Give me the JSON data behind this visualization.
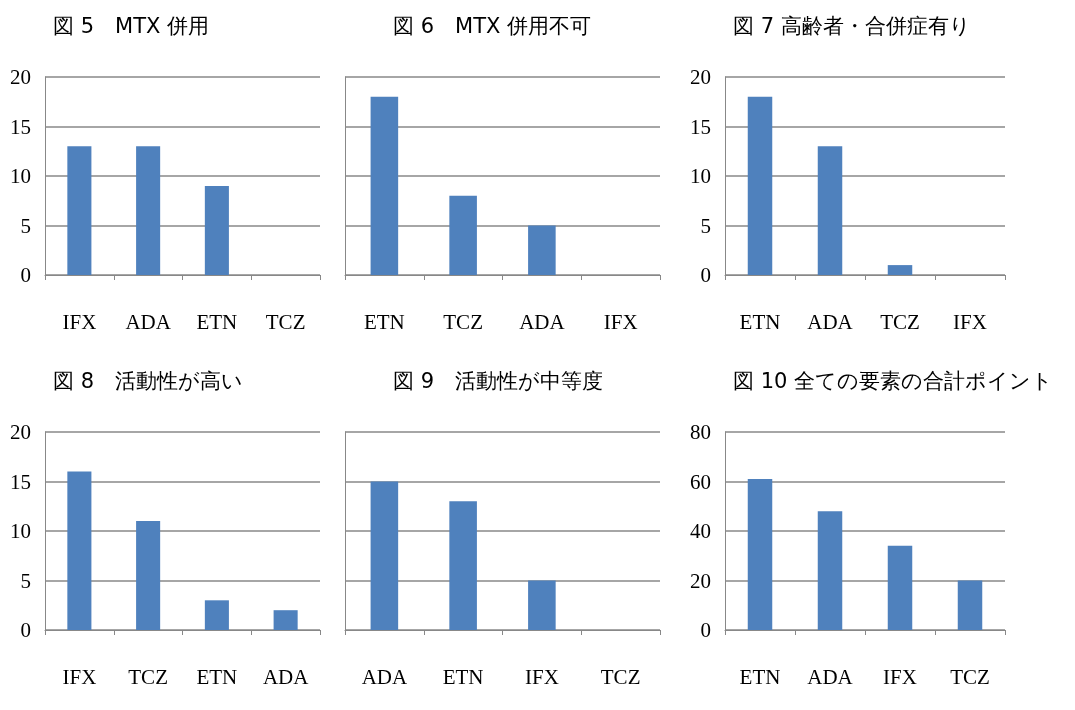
{
  "chart_data": [
    {
      "type": "bar",
      "title": "図 5　MTX 併用",
      "categories": [
        "IFX",
        "ADA",
        "ETN",
        "TCZ"
      ],
      "values": [
        13,
        13,
        9,
        0
      ],
      "color": "#4f81bd",
      "ylim": [
        0,
        20
      ],
      "yticks": [
        0,
        5,
        10,
        15,
        20
      ],
      "grid": "y"
    },
    {
      "type": "bar",
      "title": "図 6　MTX 併用不可",
      "categories": [
        "ETN",
        "TCZ",
        "ADA",
        "IFX"
      ],
      "values": [
        18,
        8,
        5,
        0
      ],
      "color": "#4f81bd",
      "ylim": [
        0,
        20
      ],
      "yticks": [
        0,
        5,
        10,
        15,
        20
      ],
      "grid": "y",
      "tick_labels": "x"
    },
    {
      "type": "bar",
      "title": "図 7 高齢者・合併症有り",
      "categories": [
        "ETN",
        "ADA",
        "TCZ",
        "IFX"
      ],
      "values": [
        18,
        13,
        1,
        0
      ],
      "color": "#4f81bd",
      "ylim": [
        0,
        20
      ],
      "yticks": [
        0,
        5,
        10,
        15,
        20
      ],
      "grid": "y"
    },
    {
      "type": "bar",
      "title": "図 8　活動性が高い",
      "categories": [
        "IFX",
        "TCZ",
        "ETN",
        "ADA"
      ],
      "values": [
        16,
        11,
        3,
        2
      ],
      "color": "#4f81bd",
      "ylim": [
        0,
        20
      ],
      "yticks": [
        0,
        5,
        10,
        15,
        20
      ],
      "grid": "y"
    },
    {
      "type": "bar",
      "title": "図 9　活動性が中等度",
      "categories": [
        "ADA",
        "ETN",
        "IFX",
        "TCZ"
      ],
      "values": [
        15,
        13,
        5,
        0
      ],
      "color": "#4f81bd",
      "ylim": [
        0,
        20
      ],
      "yticks": [
        0,
        5,
        10,
        15,
        20
      ],
      "grid": "y",
      "tick_labels": "x"
    },
    {
      "type": "bar",
      "title": "図 10 全ての要素の合計ポイント",
      "categories": [
        "ETN",
        "ADA",
        "IFX",
        "TCZ"
      ],
      "values": [
        61,
        48,
        34,
        20
      ],
      "color": "#4f81bd",
      "ylim": [
        0,
        80
      ],
      "yticks": [
        0,
        20,
        40,
        60,
        80
      ],
      "grid": "y"
    }
  ]
}
